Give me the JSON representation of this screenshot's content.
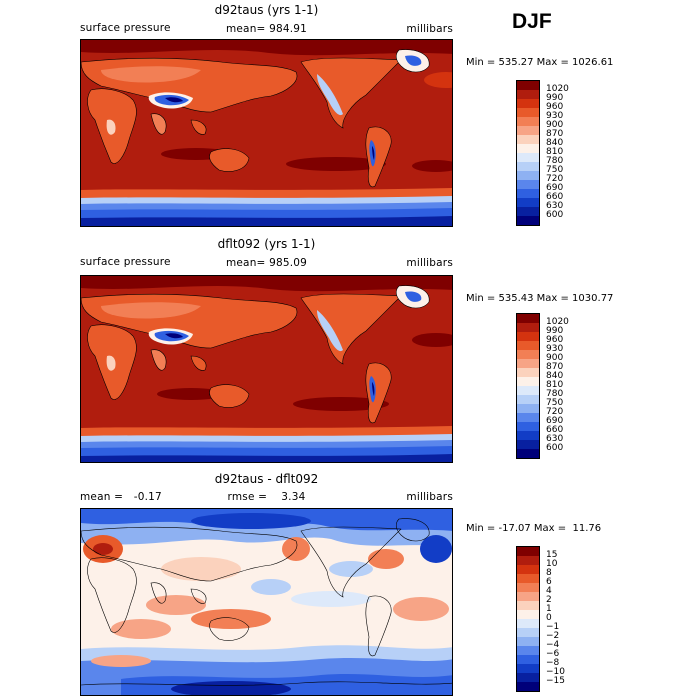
{
  "season": "DJF",
  "panels": [
    {
      "title": "d92taus (yrs 1-1)",
      "left_label": "surface pressure",
      "mid_label": "mean= 984.91",
      "right_label": "millibars",
      "stats": "Min = 535.27 Max = 1026.61",
      "colorbar": {
        "levels": [
          "1020",
          "990",
          "960",
          "930",
          "900",
          "870",
          "840",
          "810",
          "780",
          "750",
          "720",
          "690",
          "660",
          "630",
          "600"
        ],
        "colors": [
          "#7f0000",
          "#b01d0e",
          "#d4330f",
          "#e85a2a",
          "#f27f55",
          "#f7a486",
          "#fbd2bd",
          "#fdf1e9",
          "#dde9fa",
          "#b7d0f7",
          "#8eb1f2",
          "#5a86ec",
          "#2f60e1",
          "#123dc6",
          "#0820a0",
          "#00007a"
        ]
      }
    },
    {
      "title": "dflt092 (yrs 1-1)",
      "left_label": "surface pressure",
      "mid_label": "mean= 985.09",
      "right_label": "millibars",
      "stats": "Min = 535.43 Max = 1030.77",
      "colorbar": {
        "levels": [
          "1020",
          "990",
          "960",
          "930",
          "900",
          "870",
          "840",
          "810",
          "780",
          "750",
          "720",
          "690",
          "660",
          "630",
          "600"
        ],
        "colors": [
          "#7f0000",
          "#b01d0e",
          "#d4330f",
          "#e85a2a",
          "#f27f55",
          "#f7a486",
          "#fbd2bd",
          "#fdf1e9",
          "#dde9fa",
          "#b7d0f7",
          "#8eb1f2",
          "#5a86ec",
          "#2f60e1",
          "#123dc6",
          "#0820a0",
          "#00007a"
        ]
      }
    },
    {
      "title": "d92taus - dflt092",
      "left_label": "mean =   -0.17",
      "mid_label": "rmse =    3.34",
      "right_label": "millibars",
      "stats": "Min = -17.07 Max =  11.76",
      "colorbar": {
        "levels": [
          "15",
          "10",
          "8",
          "6",
          "4",
          "2",
          "1",
          "0",
          "−1",
          "−2",
          "−4",
          "−6",
          "−8",
          "−10",
          "−15"
        ],
        "colors": [
          "#7f0000",
          "#b01d0e",
          "#d4330f",
          "#e85a2a",
          "#f27f55",
          "#f7a486",
          "#fbd2bd",
          "#fdf1e9",
          "#dde9fa",
          "#b7d0f7",
          "#8eb1f2",
          "#5a86ec",
          "#2f60e1",
          "#123dc6",
          "#0820a0",
          "#00007a"
        ]
      }
    }
  ]
}
